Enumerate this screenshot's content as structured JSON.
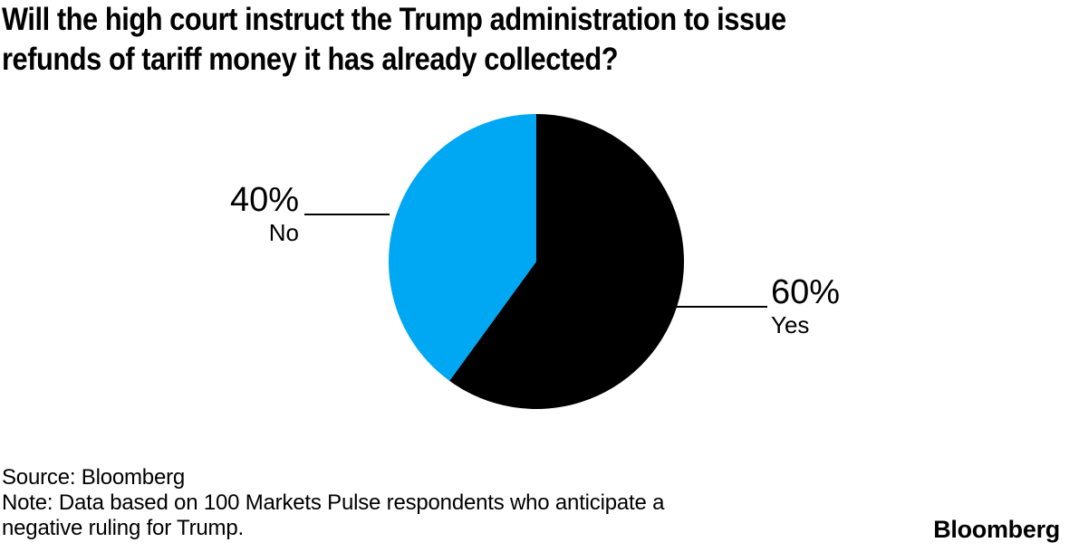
{
  "header": {
    "line1": "Will the high court instruct the Trump administration to issue",
    "line2": "refunds of tariff money it has already collected?"
  },
  "callouts": {
    "left": {
      "percent": "40%",
      "label": "No"
    },
    "right": {
      "percent": "60%",
      "label": "Yes"
    }
  },
  "footer": {
    "source": "Source: Bloomberg",
    "note_line1": "Note: Data based on 100 Markets Pulse respondents who anticipate a",
    "note_line2": "negative ruling for Trump.",
    "logo": "Bloomberg"
  },
  "colors": {
    "yes_slice": "#000000",
    "no_slice": "#00a7f3",
    "leader_line": "#000000",
    "background": "#ffffff",
    "text": "#000000"
  },
  "chart_data": {
    "type": "pie",
    "title": "Will the high court instruct the Trump administration to issue refunds of tariff money it has already collected?",
    "unit": "%",
    "start_angle": "top",
    "direction": "clockwise",
    "legend_position": "none",
    "slices": [
      {
        "label": "Yes",
        "value": 60,
        "color": "#000000"
      },
      {
        "label": "No",
        "value": 40,
        "color": "#00a7f3"
      }
    ],
    "source": "Bloomberg",
    "note": "Data based on 100 Markets Pulse respondents who anticipate a negative ruling for Trump."
  }
}
